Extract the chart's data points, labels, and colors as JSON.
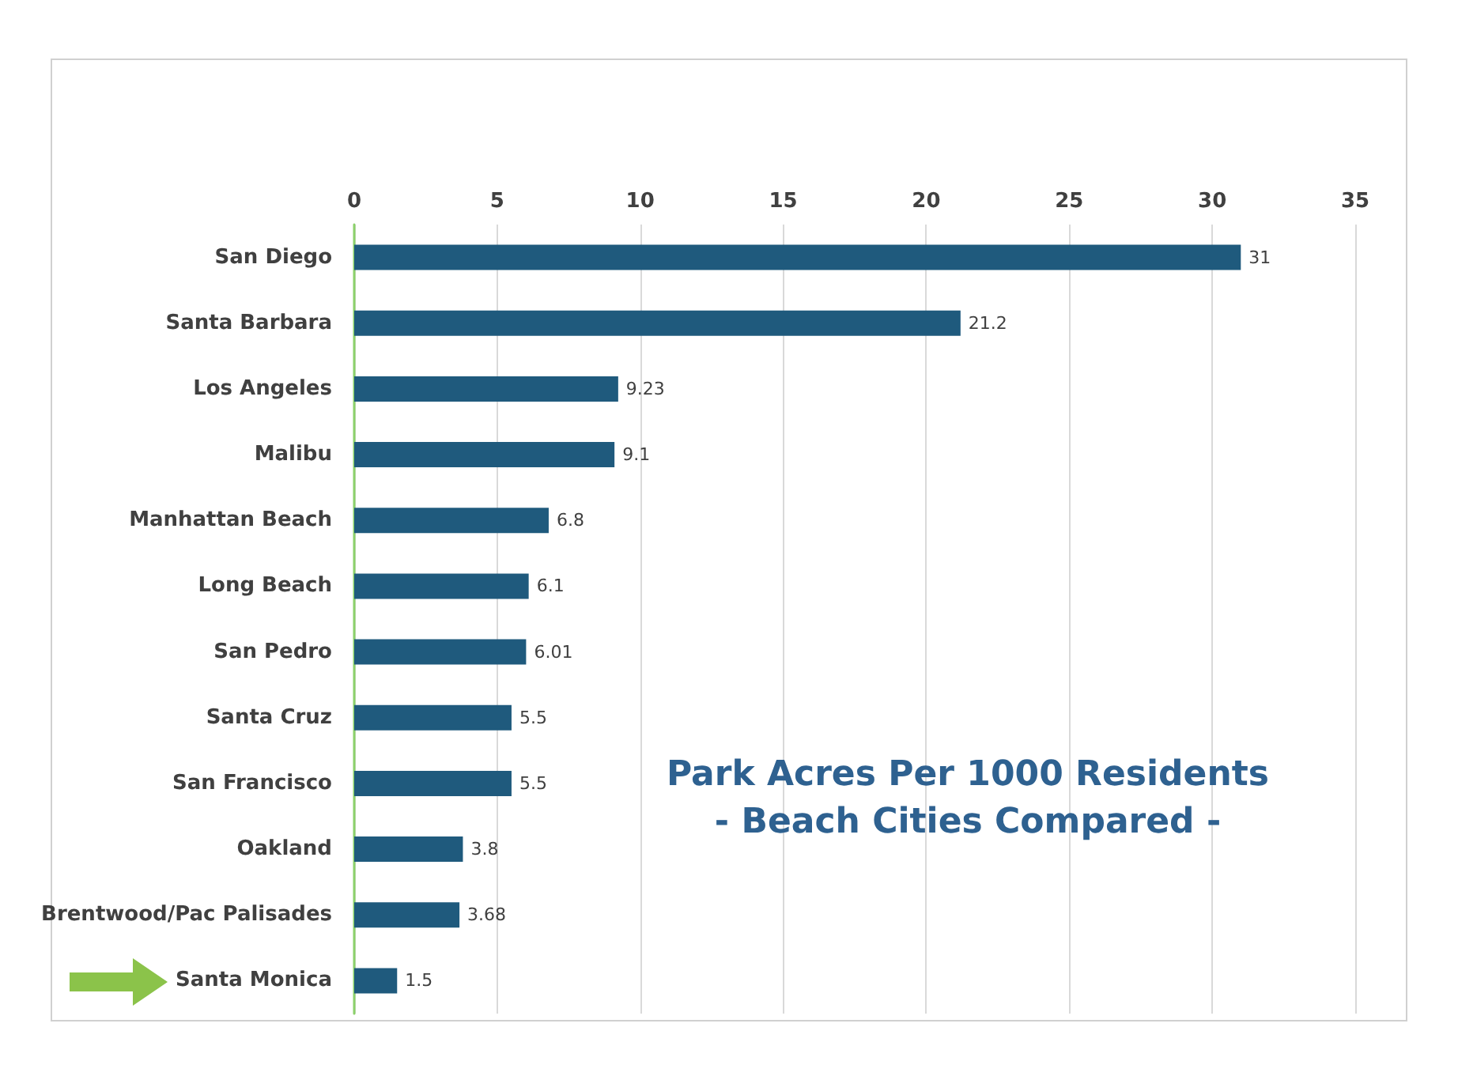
{
  "chart_data": {
    "type": "bar",
    "orientation": "horizontal",
    "title": "Park Acres Per 1000 Residents",
    "subtitle": "- Beach Cities Compared -",
    "categories": [
      "San Diego",
      "Santa Barbara",
      "Los Angeles",
      "Malibu",
      "Manhattan Beach",
      "Long Beach",
      "San Pedro",
      "Santa Cruz",
      "San Francisco",
      "Oakland",
      "Brentwood/Pac Palisades",
      "Santa Monica"
    ],
    "values": [
      31,
      21.2,
      9.23,
      9.1,
      6.8,
      6.1,
      6.01,
      5.5,
      5.5,
      3.8,
      3.68,
      1.5
    ],
    "color": "#1f5a7d",
    "xlim": [
      0,
      35
    ],
    "xticks": [
      0,
      5,
      10,
      15,
      20,
      25,
      30,
      35
    ],
    "grid": "x",
    "data_labels": true
  }
}
